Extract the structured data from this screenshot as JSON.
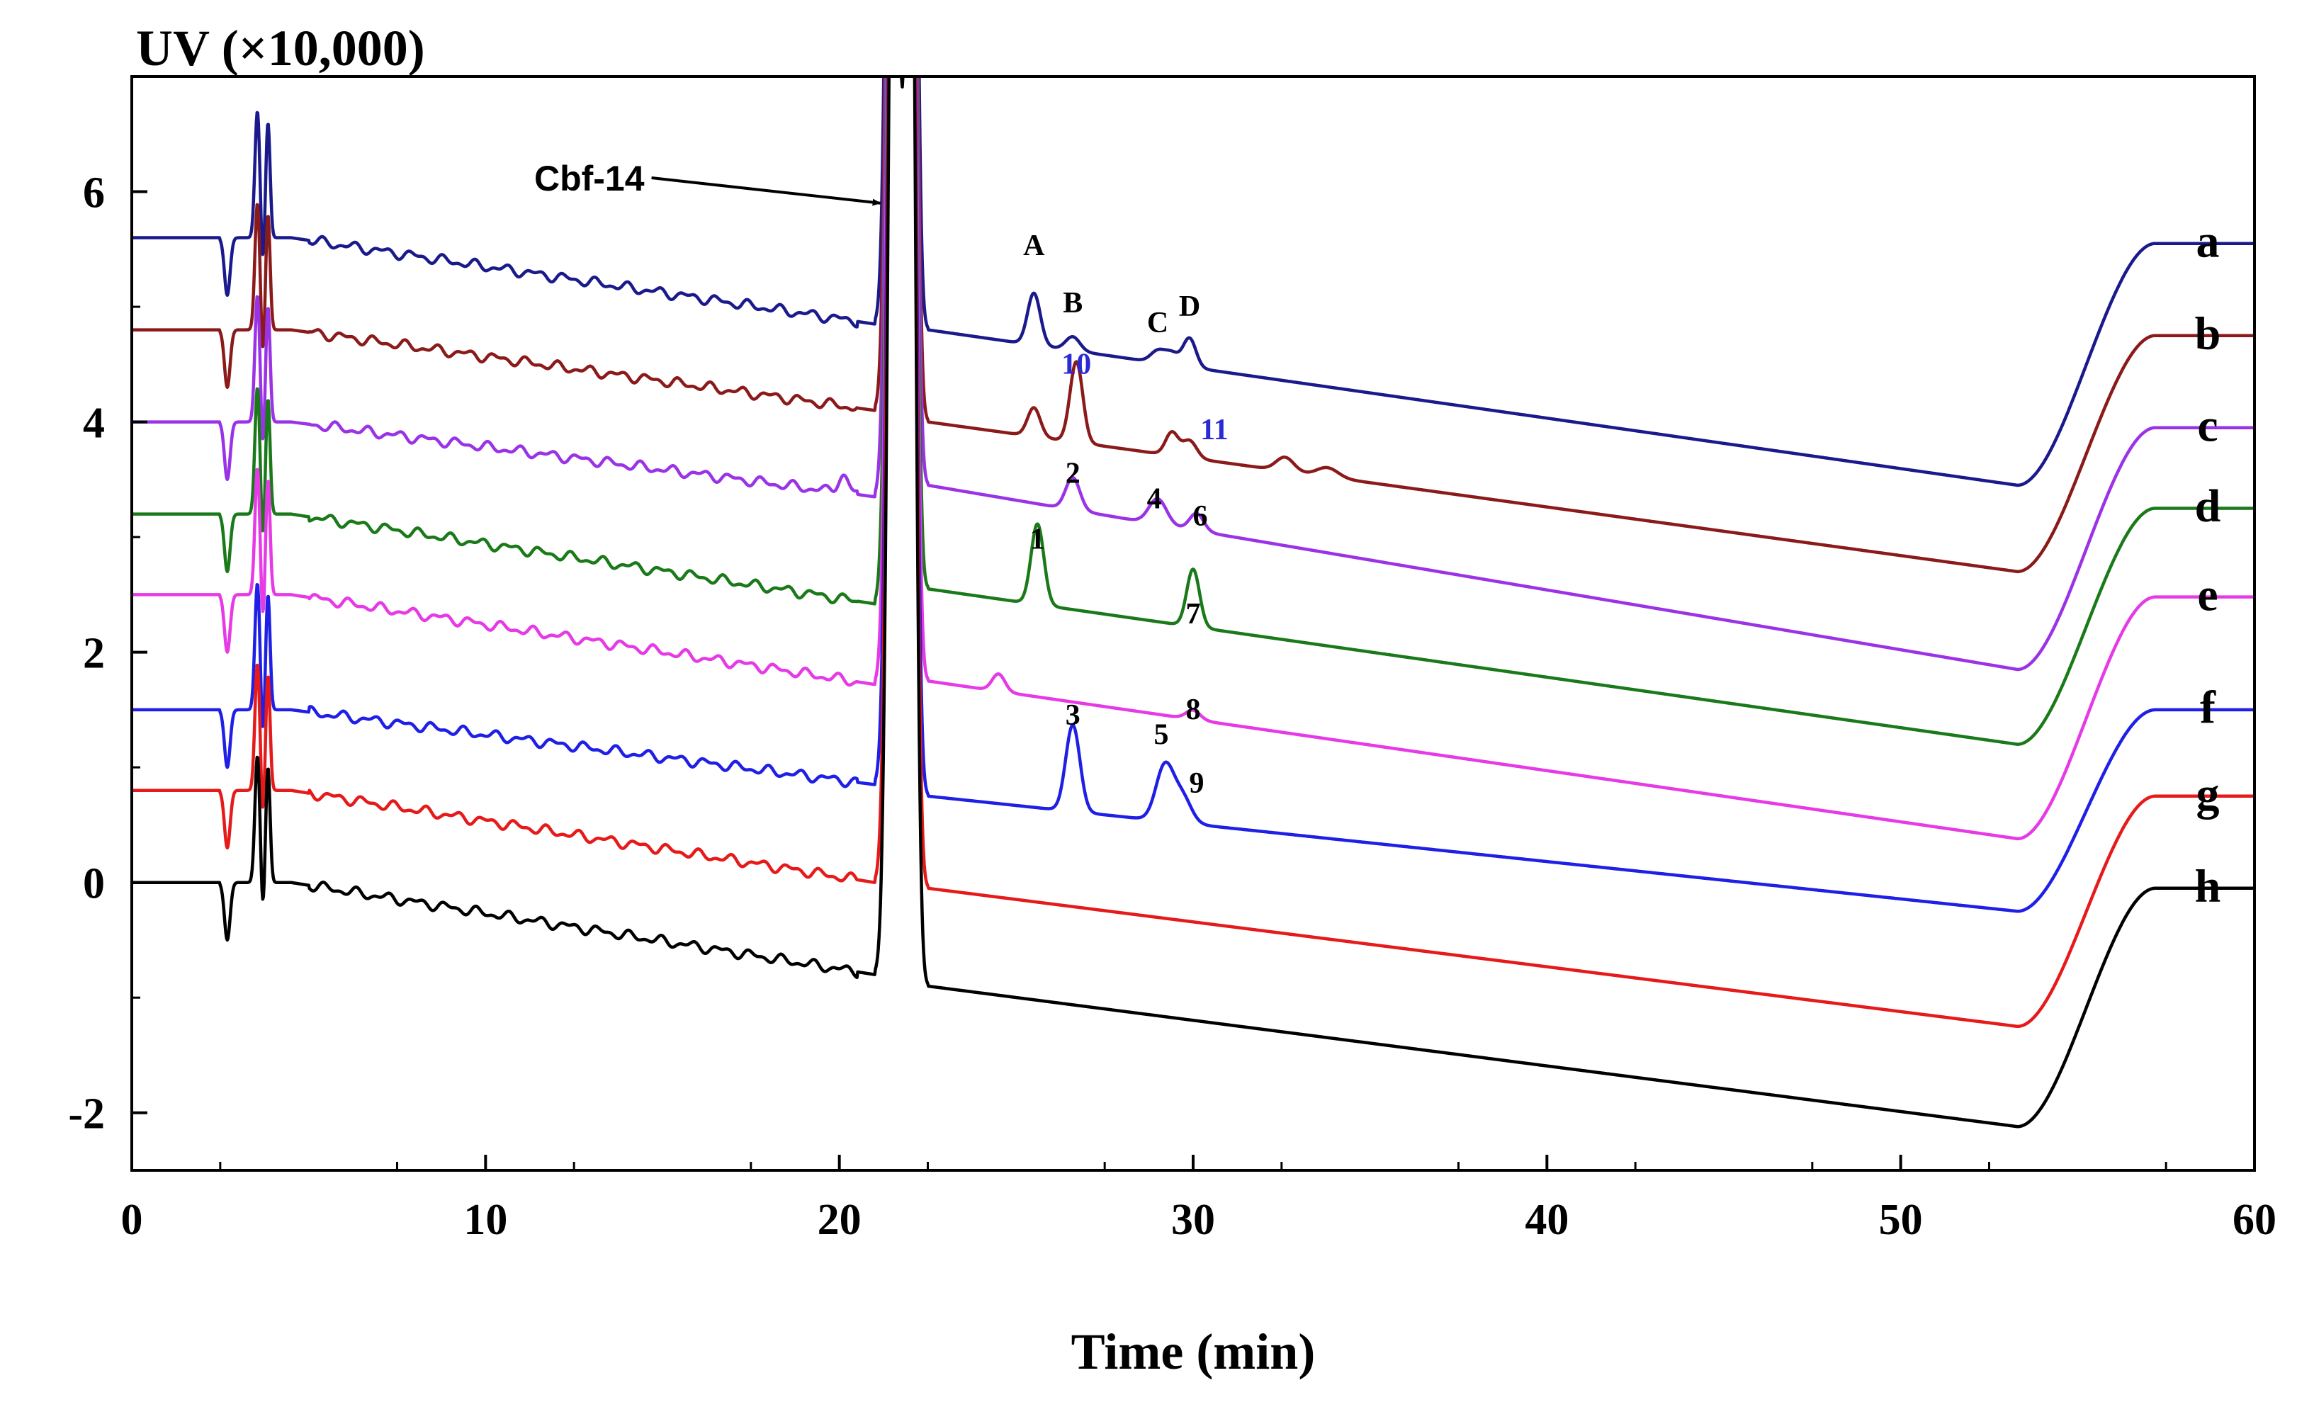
{
  "chart_data": {
    "type": "line",
    "title": "",
    "xlabel": "Time (min)",
    "ylabel": "UV (×10,000)",
    "xlim": [
      0,
      60
    ],
    "ylim": [
      -2.5,
      7.0
    ],
    "xticks": [
      0,
      10,
      20,
      30,
      40,
      50,
      60
    ],
    "xtick_labels": [
      "0",
      "10",
      "20",
      "30",
      "40",
      "50",
      "60"
    ],
    "yticks": [
      -2,
      0,
      2,
      4,
      6
    ],
    "ytick_labels": [
      "-2",
      "0",
      "2",
      "4",
      "6"
    ],
    "grid": false,
    "legend": "none",
    "series": [
      {
        "name": "a",
        "color": "#1a1a8c",
        "start": 5.6,
        "pre": 4.85,
        "post": 4.8,
        "drop": 3.45,
        "plateau": 5.55,
        "peaks": [
          [
            25.5,
            0.45,
            0.18
          ],
          [
            26.6,
            0.12,
            0.2
          ],
          [
            29.0,
            0.1,
            0.2
          ],
          [
            29.4,
            0.1,
            0.2
          ],
          [
            29.9,
            0.25,
            0.18
          ]
        ]
      },
      {
        "name": "b",
        "color": "#8b1a1a",
        "start": 4.8,
        "pre": 4.1,
        "post": 4.0,
        "drop": 2.7,
        "plateau": 4.75,
        "peaks": [
          [
            25.5,
            0.25,
            0.18
          ],
          [
            26.7,
            0.7,
            0.18
          ],
          [
            29.4,
            0.2,
            0.18
          ],
          [
            29.9,
            0.15,
            0.2
          ],
          [
            32.6,
            0.12,
            0.25
          ],
          [
            33.8,
            0.08,
            0.3
          ]
        ]
      },
      {
        "name": "c",
        "color": "#9a33e6",
        "start": 4.0,
        "pre": 3.35,
        "post": 3.45,
        "drop": 1.85,
        "plateau": 3.95,
        "peaks": [
          [
            20.1,
            0.15,
            0.15
          ],
          [
            26.6,
            0.28,
            0.2
          ],
          [
            29.0,
            0.22,
            0.25
          ],
          [
            30.1,
            0.15,
            0.2
          ]
        ]
      },
      {
        "name": "d",
        "color": "#1a7a1a",
        "start": 3.2,
        "pre": 2.42,
        "post": 2.55,
        "drop": 1.2,
        "plateau": 3.25,
        "peaks": [
          [
            25.6,
            0.7,
            0.18
          ],
          [
            30.0,
            0.5,
            0.18
          ]
        ]
      },
      {
        "name": "e",
        "color": "#e63ae6",
        "start": 2.5,
        "pre": 1.72,
        "post": 1.75,
        "drop": 0.38,
        "plateau": 2.48,
        "peaks": [
          [
            24.5,
            0.15,
            0.18
          ],
          [
            30.0,
            0.08,
            0.2
          ]
        ]
      },
      {
        "name": "f",
        "color": "#1f1fe6",
        "start": 1.5,
        "pre": 0.85,
        "post": 0.75,
        "drop": -0.25,
        "plateau": 1.5,
        "peaks": [
          [
            26.6,
            0.75,
            0.2
          ],
          [
            29.2,
            0.48,
            0.25
          ],
          [
            29.7,
            0.22,
            0.25
          ]
        ]
      },
      {
        "name": "g",
        "color": "#e61a1a",
        "start": 0.8,
        "pre": 0.0,
        "post": -0.05,
        "drop": -1.25,
        "plateau": 0.75,
        "peaks": []
      },
      {
        "name": "h",
        "color": "#000000",
        "start": 0.0,
        "pre": -0.8,
        "post": -0.9,
        "drop": -2.12,
        "plateau": -0.05,
        "peaks": []
      }
    ],
    "trace_labels": [
      "a",
      "b",
      "c",
      "d",
      "e",
      "f",
      "g",
      "h"
    ],
    "peak_annotations": [
      {
        "text": "A",
        "x": 25.5,
        "y": 5.45,
        "color": "#000000"
      },
      {
        "text": "B",
        "x": 26.6,
        "y": 4.95,
        "color": "#000000"
      },
      {
        "text": "C",
        "x": 29.0,
        "y": 4.78,
        "color": "#000000"
      },
      {
        "text": "D",
        "x": 29.9,
        "y": 4.92,
        "color": "#000000"
      },
      {
        "text": "10",
        "x": 26.7,
        "y": 4.42,
        "color": "#2b2bd6"
      },
      {
        "text": "11",
        "x": 30.6,
        "y": 3.85,
        "color": "#2b2bd6"
      },
      {
        "text": "2",
        "x": 26.6,
        "y": 3.47,
        "color": "#000000"
      },
      {
        "text": "4",
        "x": 28.9,
        "y": 3.25,
        "color": "#000000"
      },
      {
        "text": "6",
        "x": 30.2,
        "y": 3.1,
        "color": "#000000"
      },
      {
        "text": "1",
        "x": 25.6,
        "y": 2.9,
        "color": "#000000"
      },
      {
        "text": "7",
        "x": 30.0,
        "y": 2.25,
        "color": "#000000"
      },
      {
        "text": "8",
        "x": 30.0,
        "y": 1.42,
        "color": "#000000"
      },
      {
        "text": "3",
        "x": 26.6,
        "y": 1.37,
        "color": "#000000"
      },
      {
        "text": "5",
        "x": 29.1,
        "y": 1.2,
        "color": "#000000"
      },
      {
        "text": "9",
        "x": 30.1,
        "y": 0.78,
        "color": "#000000"
      }
    ],
    "arrow_annotation": {
      "text": "Cbf-14",
      "target_x": 21.4,
      "target_y": 5.9
    }
  }
}
